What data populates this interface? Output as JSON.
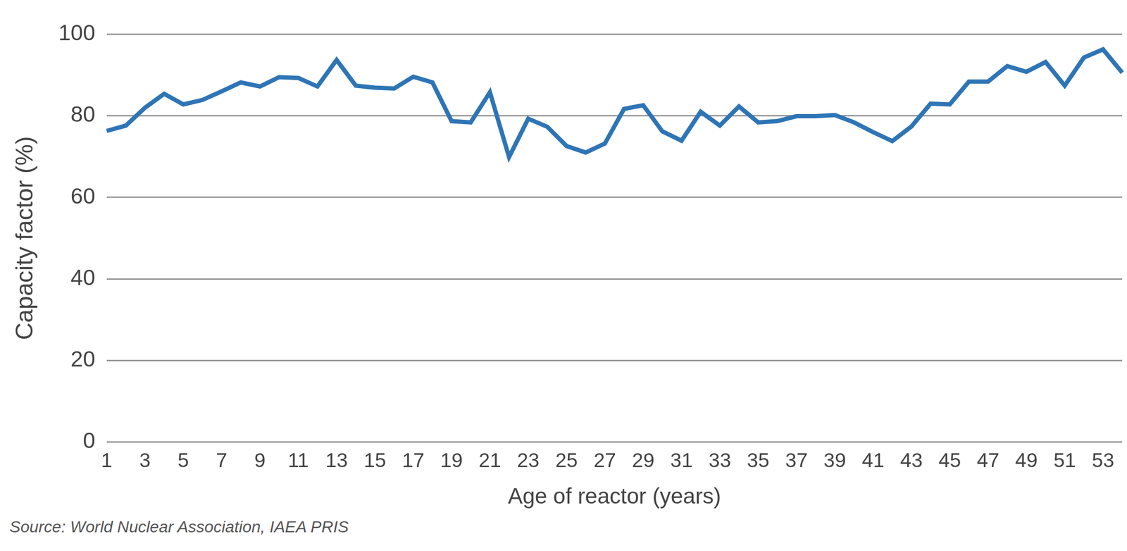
{
  "chart_data": {
    "type": "line",
    "x_label": "Age of reactor (years)",
    "y_label": "Capacity factor (%)",
    "source": "Source: World Nuclear Association, IAEA PRIS",
    "categories": [
      "1",
      null,
      "3",
      null,
      "5",
      null,
      "7",
      null,
      "9",
      null,
      "11",
      null,
      "13",
      null,
      "15",
      null,
      "17",
      null,
      "19",
      null,
      "21",
      null,
      "23",
      null,
      "25",
      null,
      "27",
      null,
      "29",
      null,
      "31",
      null,
      "33",
      null,
      "35",
      null,
      "37",
      null,
      "39",
      null,
      "41",
      null,
      "43",
      null,
      "45",
      null,
      "47",
      null,
      "49",
      null,
      "51",
      null,
      "53",
      null
    ],
    "values": [
      76.3,
      77.6,
      82,
      85.4,
      82.8,
      83.9,
      86,
      88.2,
      87.2,
      89.5,
      89.3,
      87.2,
      93.7,
      87.4,
      86.9,
      86.7,
      89.6,
      88.2,
      78.7,
      78.4,
      85.8,
      69.9,
      79.3,
      77.3,
      72.6,
      71,
      73.2,
      81.7,
      82.6,
      76.2,
      73.9,
      81,
      77.6,
      82.3,
      78.4,
      78.7,
      79.9,
      79.9,
      80.2,
      78.4,
      76,
      73.8,
      77.4,
      83,
      82.8,
      88.4,
      88.4,
      92.2,
      90.8,
      93.2,
      87.4,
      94.3,
      96.3,
      90.6
    ],
    "color": "#2e75b6",
    "ylim": [
      0,
      100
    ],
    "yticks": [
      0,
      20,
      40,
      60,
      80,
      100
    ],
    "grid": true
  }
}
